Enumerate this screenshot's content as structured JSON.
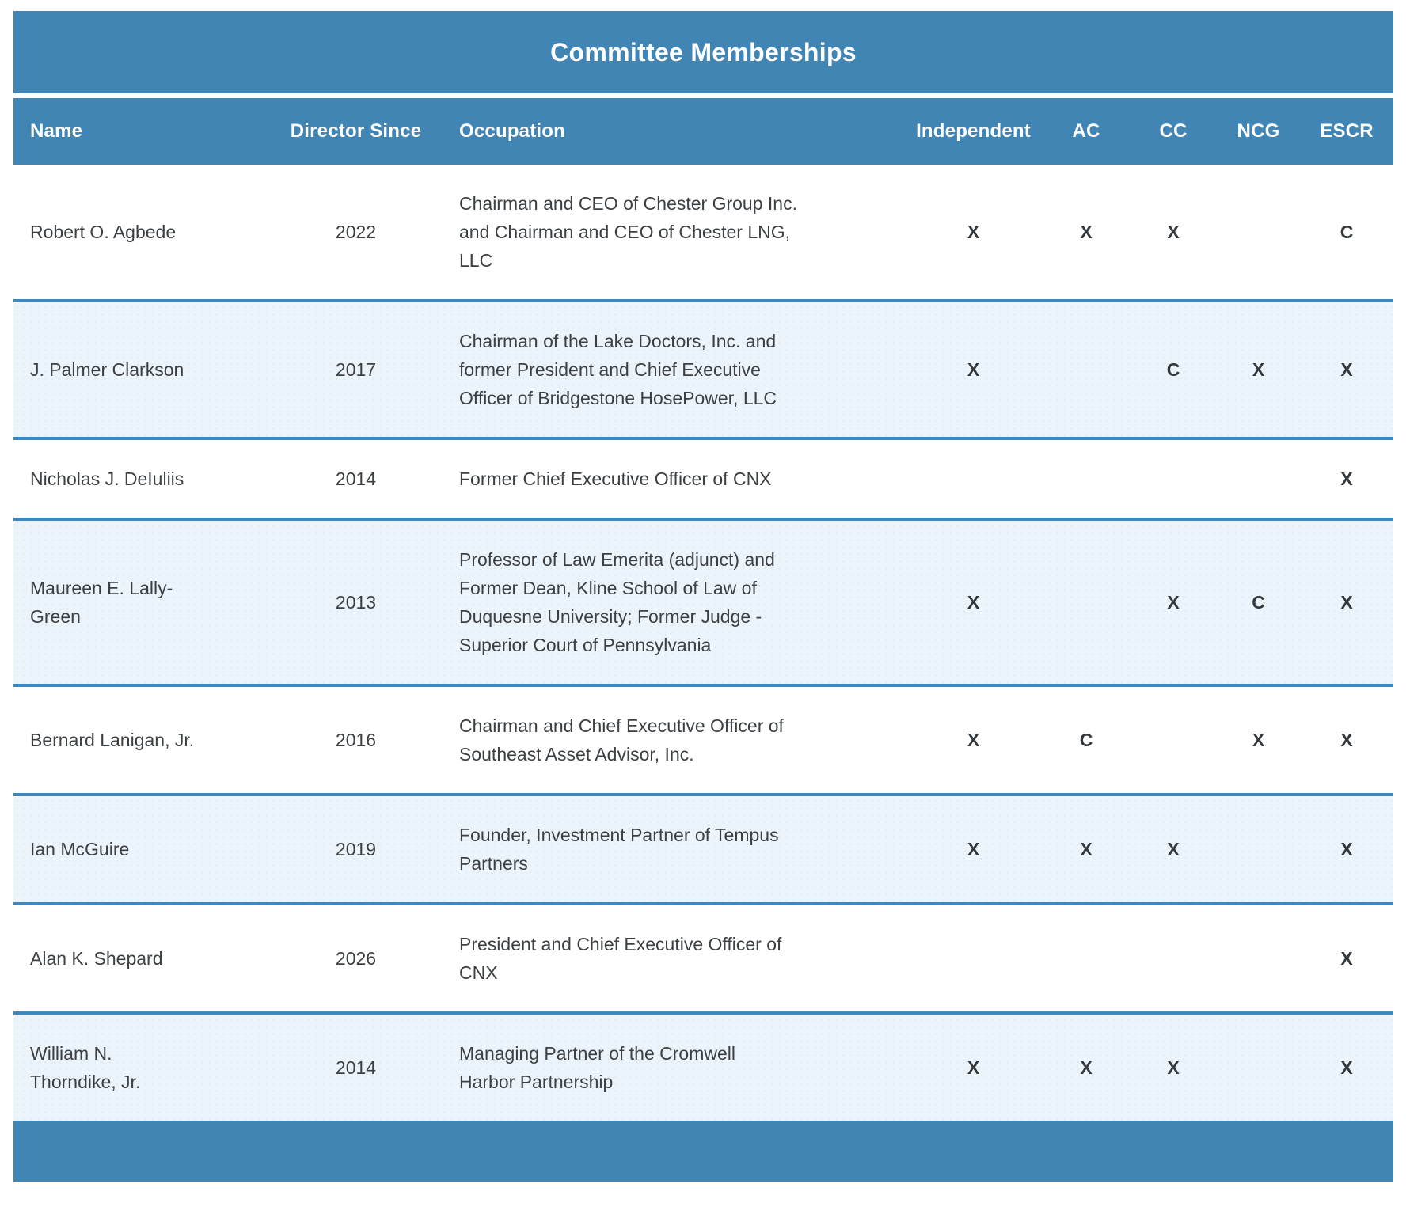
{
  "table": {
    "title": "Committee Memberships",
    "columns": [
      {
        "key": "name",
        "label": "Name"
      },
      {
        "key": "director_since",
        "label": "Director Since"
      },
      {
        "key": "occupation",
        "label": "Occupation"
      },
      {
        "key": "independent",
        "label": "Independent"
      },
      {
        "key": "ac",
        "label": "AC"
      },
      {
        "key": "cc",
        "label": "CC"
      },
      {
        "key": "ncg",
        "label": "NCG"
      },
      {
        "key": "escr",
        "label": "ESCR"
      }
    ],
    "rows": [
      {
        "name": "Robert O. Agbede",
        "director_since": "2022",
        "occupation": "Chairman and CEO of Chester Group Inc.\nand Chairman and CEO of Chester LNG,\nLLC",
        "independent": "X",
        "ac": "X",
        "cc": "X",
        "ncg": "",
        "escr": "C"
      },
      {
        "name": "J. Palmer Clarkson",
        "director_since": "2017",
        "occupation": "Chairman of the Lake Doctors, Inc. and\nformer President and Chief Executive\nOfficer of Bridgestone HosePower, LLC",
        "independent": "X",
        "ac": "",
        "cc": "C",
        "ncg": "X",
        "escr": "X"
      },
      {
        "name": "Nicholas J. DeIuliis",
        "director_since": "2014",
        "occupation": "Former Chief Executive Officer of CNX",
        "independent": "",
        "ac": "",
        "cc": "",
        "ncg": "",
        "escr": "X"
      },
      {
        "name": "Maureen E. Lally-\nGreen",
        "director_since": "2013",
        "occupation": "Professor of Law Emerita (adjunct) and\nFormer Dean, Kline School of Law of\nDuquesne University; Former Judge -\nSuperior Court of Pennsylvania",
        "independent": "X",
        "ac": "",
        "cc": "X",
        "ncg": "C",
        "escr": "X"
      },
      {
        "name": "Bernard Lanigan, Jr.",
        "director_since": "2016",
        "occupation": "Chairman and Chief Executive Officer of\nSoutheast Asset Advisor, Inc.",
        "independent": "X",
        "ac": "C",
        "cc": "",
        "ncg": "X",
        "escr": "X"
      },
      {
        "name": "Ian McGuire",
        "director_since": "2019",
        "occupation": "Founder, Investment Partner of Tempus\nPartners",
        "independent": "X",
        "ac": "X",
        "cc": "X",
        "ncg": "",
        "escr": "X"
      },
      {
        "name": "Alan K. Shepard",
        "director_since": "2026",
        "occupation": "President and Chief Executive Officer of\nCNX",
        "independent": "",
        "ac": "",
        "cc": "",
        "ncg": "",
        "escr": "X"
      },
      {
        "name": "William N.\nThorndike, Jr.",
        "director_since": "2014",
        "occupation": "Managing Partner of the Cromwell\nHarbor Partnership",
        "independent": "X",
        "ac": "X",
        "cc": "X",
        "ncg": "",
        "escr": "X"
      }
    ]
  },
  "colors": {
    "header_blue": "#4185b5",
    "divider_blue": "#3d88c0",
    "alt_row_blue": "#ecf4fb",
    "body_text": "#3c4043",
    "mark_text": "#33383c",
    "header_text": "#ffffff"
  }
}
